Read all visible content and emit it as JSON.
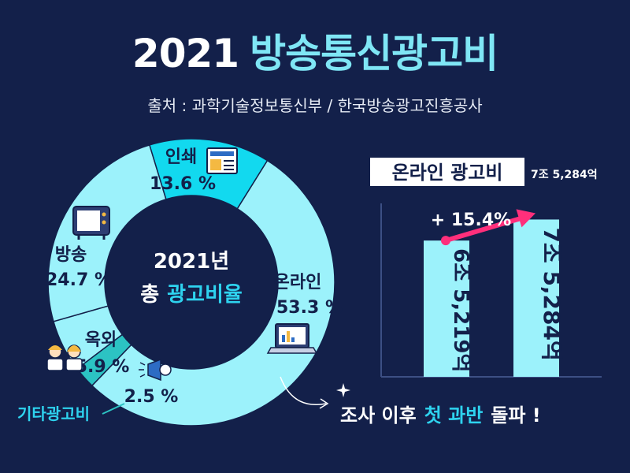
{
  "title": {
    "year": "2021",
    "main": "방송통신광고비"
  },
  "source": "출처 : 과학기술정보통신부 / 한국방송광고진흥공사",
  "donut_center": {
    "line1": "2021년",
    "line2_a": "총",
    "line2_b": "광고비율"
  },
  "bar_section": {
    "title": "온라인 광고비",
    "title_value": "7조 5,284억",
    "growth_label": "+ 15.4%"
  },
  "callout": {
    "prefix": "조사 이후",
    "highlight": "첫 과반",
    "suffix": "돌파 !"
  },
  "colors": {
    "background": "#13204a",
    "donut_light": "#9cf2fb",
    "donut_cyan": "#12d9ef",
    "donut_teal": "#2cc3c3",
    "accent": "#ff2f7b",
    "bar": "#9cf2fb"
  },
  "icons": [
    "newspaper-icon",
    "tv-icon",
    "people-icon",
    "megaphone-icon",
    "laptop-icon",
    "sparkle-icon"
  ],
  "chart_data": [
    {
      "type": "pie",
      "title": "2021년 총 광고비율",
      "slices": [
        {
          "name": "온라인",
          "value": 53.3,
          "label": "53.3 %"
        },
        {
          "name": "기타광고비",
          "value": 2.5,
          "label": "2.5 %"
        },
        {
          "name": "옥외",
          "value": 5.9,
          "label": "5.9 %"
        },
        {
          "name": "방송",
          "value": 24.7,
          "label": "24.7 %"
        },
        {
          "name": "인쇄",
          "value": 13.6,
          "label": "13.6 %"
        }
      ]
    },
    {
      "type": "bar",
      "title": "온라인 광고비",
      "categories": [
        "",
        ""
      ],
      "values": [
        6.5219,
        7.5284
      ],
      "value_labels": [
        "6조 5,219억",
        "7조 5,284억"
      ],
      "ylim": [
        0,
        8.3
      ]
    }
  ]
}
